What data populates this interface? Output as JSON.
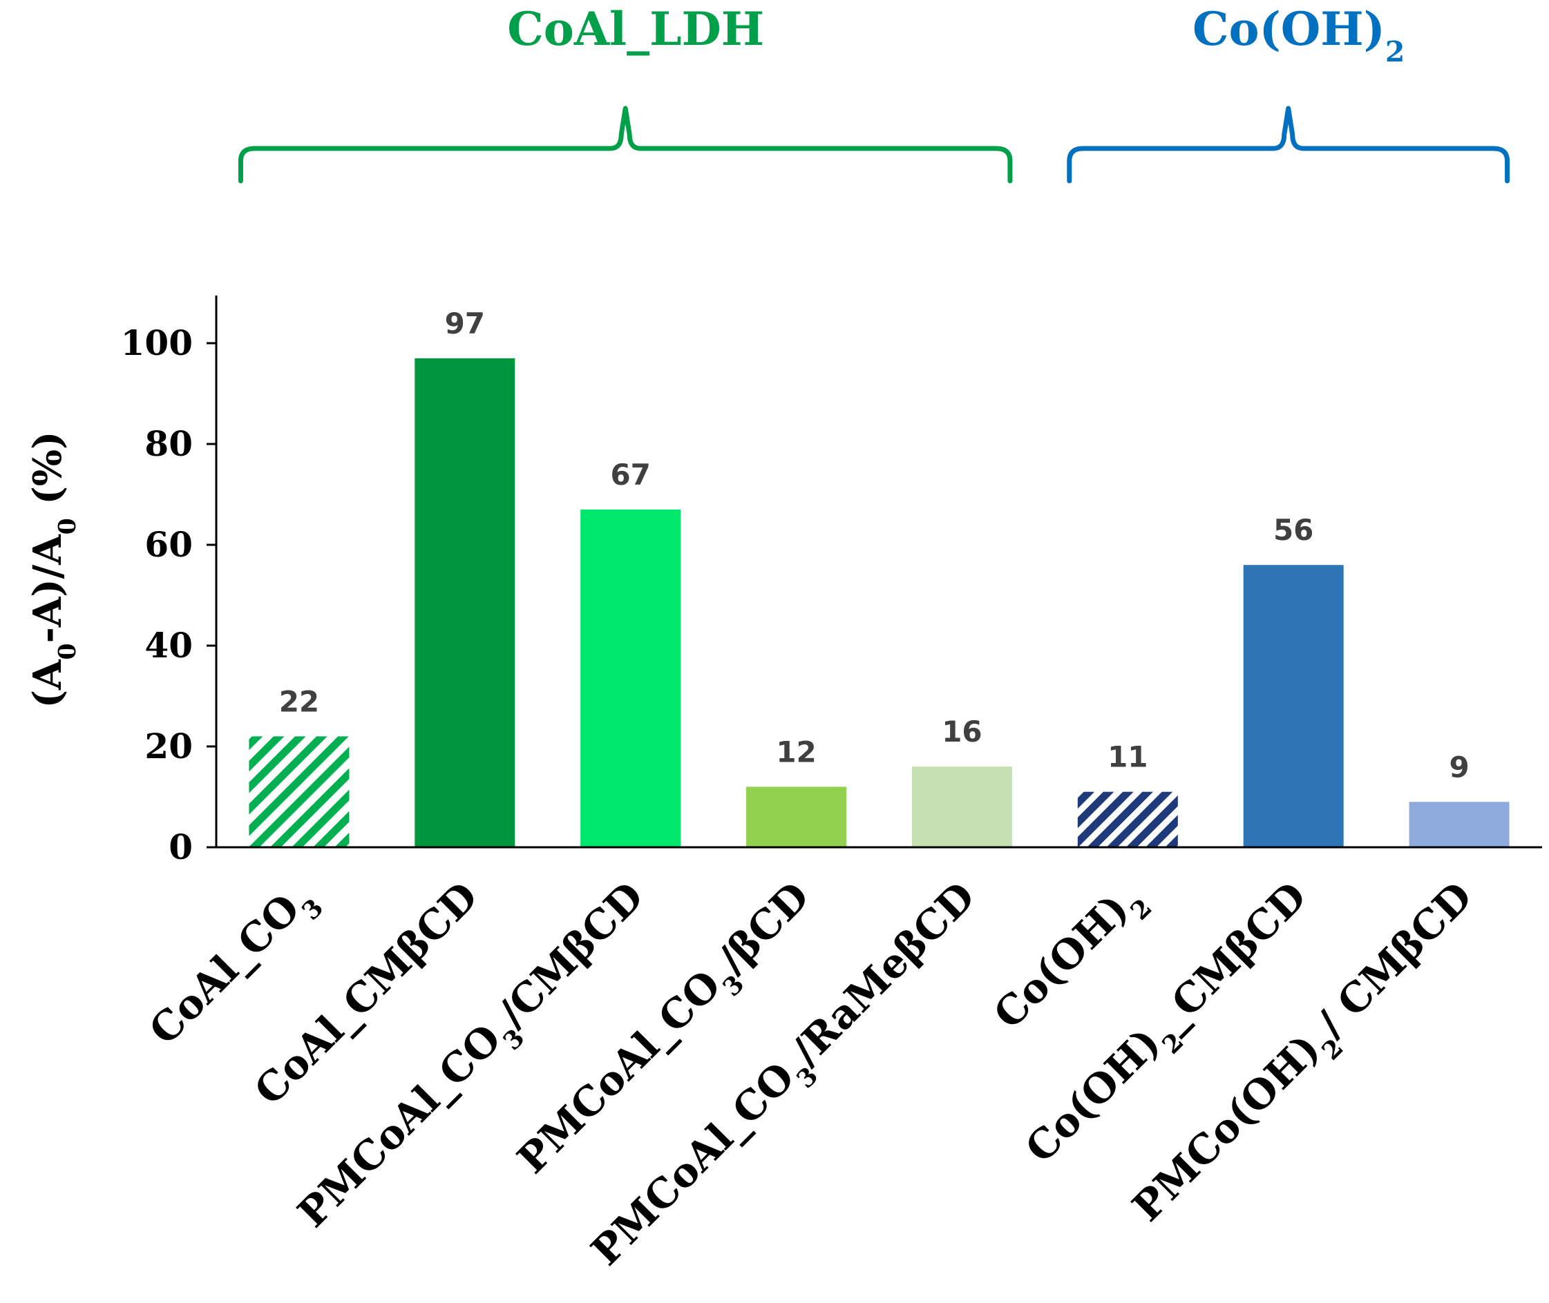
{
  "chart_data": {
    "type": "bar",
    "title": "",
    "ylabel": {
      "parts": [
        {
          "t": "(A"
        },
        {
          "t": "0",
          "sub": true
        },
        {
          "t": "-A)/A"
        },
        {
          "t": "0",
          "sub": true
        },
        {
          "t": " (%)"
        }
      ]
    },
    "xlabel": "",
    "ylim": [
      0,
      110
    ],
    "yticks": [
      0,
      20,
      40,
      60,
      80,
      100
    ],
    "grid": false,
    "groups": [
      {
        "parts": [
          {
            "t": "CoAl_LDH"
          }
        ],
        "color": "#00A04A",
        "from": 0,
        "to": 4
      },
      {
        "parts": [
          {
            "t": "Co(OH)"
          },
          {
            "t": "2",
            "sub": true
          }
        ],
        "color": "#0070C0",
        "from": 5,
        "to": 7
      }
    ],
    "bars": [
      {
        "value": 22,
        "color": "#00B050",
        "pattern": "hatch-green",
        "label": [
          {
            "t": "CoAl_CO"
          },
          {
            "t": "3",
            "sub": true
          }
        ]
      },
      {
        "value": 97,
        "color": "#009640",
        "pattern": null,
        "label": [
          {
            "t": "CoAl_CMβCD"
          }
        ]
      },
      {
        "value": 67,
        "color": "#00E86C",
        "pattern": null,
        "label": [
          {
            "t": "PMCoAl_CO"
          },
          {
            "t": "3",
            "sub": true
          },
          {
            "t": "/CMβCD"
          }
        ]
      },
      {
        "value": 12,
        "color": "#92D050",
        "pattern": null,
        "label": [
          {
            "t": "PMCoAl_CO"
          },
          {
            "t": "3",
            "sub": true
          },
          {
            "t": "/βCD"
          }
        ]
      },
      {
        "value": 16,
        "color": "#C6E0B4",
        "pattern": null,
        "label": [
          {
            "t": "PMCoAl_CO"
          },
          {
            "t": "3",
            "sub": true
          },
          {
            "t": "/RaMeβCD"
          }
        ]
      },
      {
        "value": 11,
        "color": "#1F3A7A",
        "pattern": "hatch-navy",
        "label": [
          {
            "t": "Co(OH)"
          },
          {
            "t": "2",
            "sub": true
          }
        ]
      },
      {
        "value": 56,
        "color": "#2E75B6",
        "pattern": null,
        "label": [
          {
            "t": "Co(OH)"
          },
          {
            "t": "2",
            "sub": true
          },
          {
            "t": "_CMβCD"
          }
        ]
      },
      {
        "value": 9,
        "color": "#8FAADC",
        "pattern": null,
        "label": [
          {
            "t": "PMCo(OH)"
          },
          {
            "t": "2",
            "sub": true
          },
          {
            "t": "/ CMβCD"
          }
        ]
      }
    ]
  }
}
